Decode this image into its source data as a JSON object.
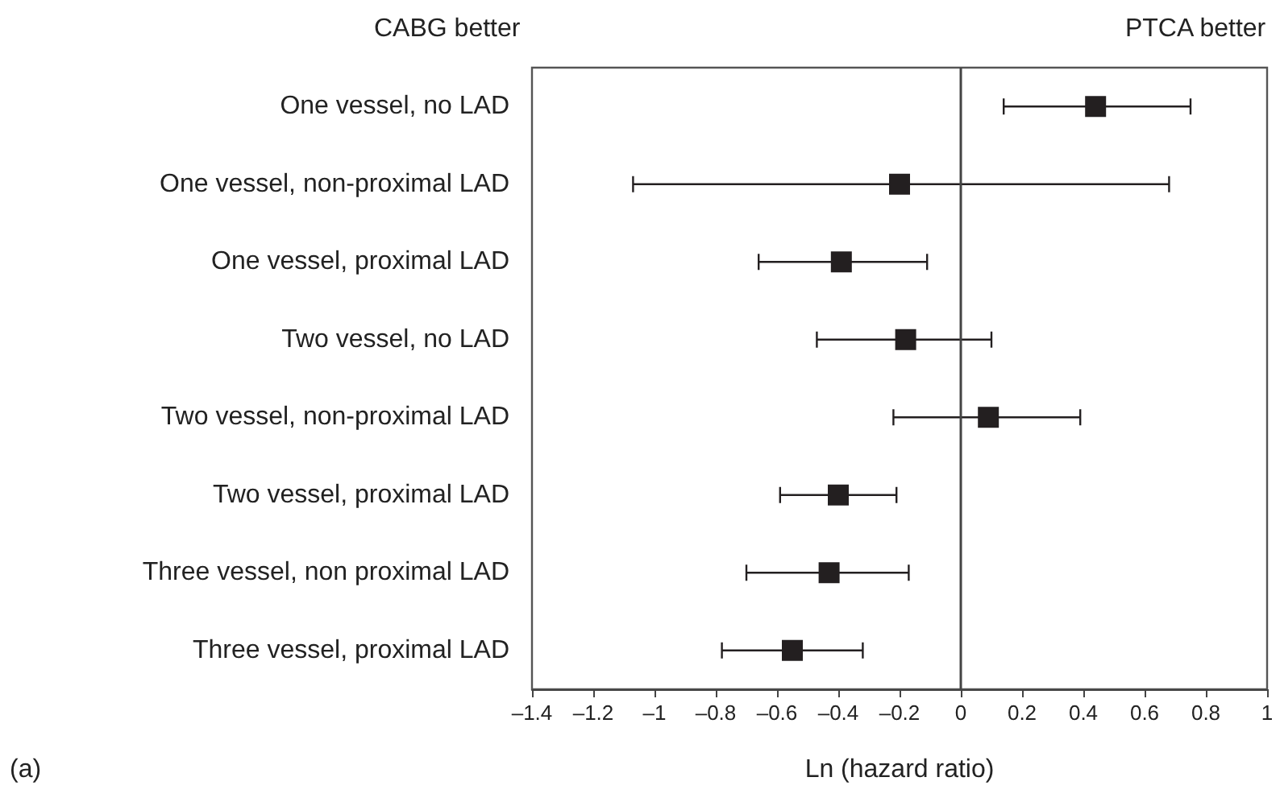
{
  "chart_data": {
    "type": "scatter",
    "orientation": "horizontal",
    "categories": [
      "One vessel, no LAD",
      "One vessel, non-proximal LAD",
      "One vessel, proximal LAD",
      "Two vessel, no LAD",
      "Two vessel, non-proximal LAD",
      "Two vessel, proximal LAD",
      "Three vessel, non proximal LAD",
      "Three vessel, proximal LAD"
    ],
    "series": [
      {
        "color": "#231f20",
        "values": [
          0.44,
          -0.2,
          -0.39,
          -0.18,
          0.09,
          -0.4,
          -0.43,
          -0.55
        ],
        "errors": [
          [
            0.14,
            0.75
          ],
          [
            -1.07,
            0.68
          ],
          [
            -0.66,
            -0.11
          ],
          [
            -0.47,
            0.1
          ],
          [
            -0.22,
            0.39
          ],
          [
            -0.59,
            -0.21
          ],
          [
            -0.7,
            -0.17
          ],
          [
            -0.78,
            -0.32
          ]
        ]
      }
    ],
    "xlim": [
      -1.4,
      1.0
    ],
    "xticks": [
      {
        "value": -1.4,
        "label": "–1.4"
      },
      {
        "value": -1.2,
        "label": "–1.2"
      },
      {
        "value": -1.0,
        "label": "–1"
      },
      {
        "value": -0.8,
        "label": "–0.8"
      },
      {
        "value": -0.6,
        "label": "–0.6"
      },
      {
        "value": -0.4,
        "label": "–0.4"
      },
      {
        "value": -0.2,
        "label": "–0.2"
      },
      0,
      0.2,
      0.4,
      0.6,
      0.8,
      1
    ],
    "xlabel": "Ln (hazard ratio)",
    "ref_lines": [
      {
        "axis": "x",
        "value": 0,
        "color": "#444444"
      }
    ],
    "annotations": [
      "CABG better",
      "PTCA better",
      "(a)"
    ],
    "marker": "square",
    "grid": false
  }
}
